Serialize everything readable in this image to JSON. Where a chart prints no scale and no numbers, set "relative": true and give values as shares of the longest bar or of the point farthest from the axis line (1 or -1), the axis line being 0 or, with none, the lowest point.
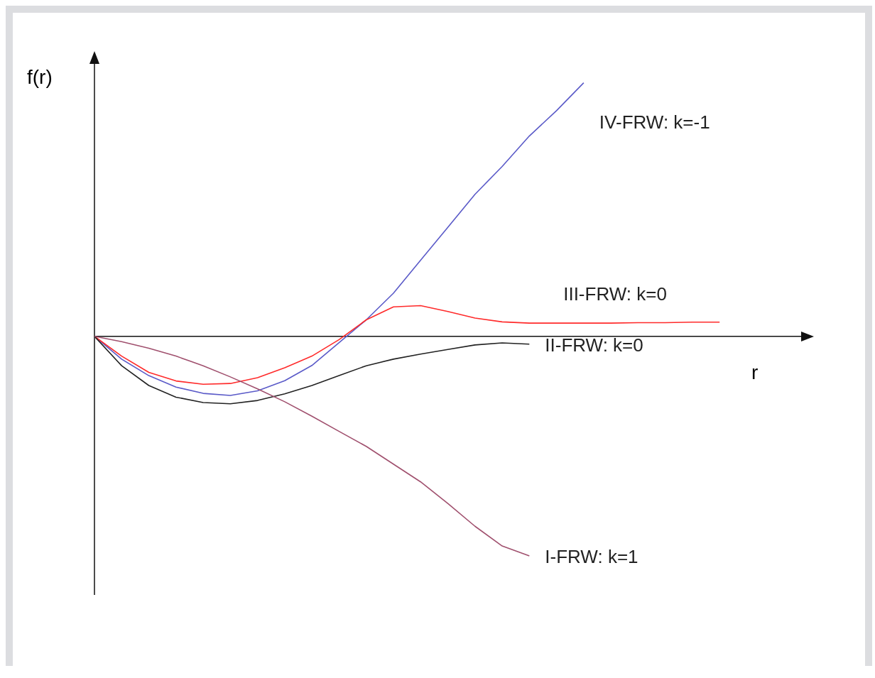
{
  "chart_data": {
    "type": "line",
    "relative": true,
    "xlabel": "r",
    "ylabel": "f(r)",
    "marker": "none",
    "line_style": "solid",
    "grid": false,
    "legend": false,
    "categories": [
      null,
      null,
      null,
      null,
      null,
      null,
      null,
      null,
      null,
      null,
      null,
      null,
      null,
      null,
      null,
      null,
      null,
      null,
      null,
      null,
      null,
      null,
      null,
      null,
      null,
      null
    ],
    "series": [
      {
        "name": "IV-FRW: k=-1",
        "color": "#5a5ac8",
        "values": [
          0,
          -0.09,
          -0.155,
          -0.2,
          -0.225,
          -0.233,
          -0.215,
          -0.175,
          -0.115,
          -0.025,
          0.065,
          0.17,
          0.3,
          0.43,
          0.56,
          0.67,
          0.79,
          0.89,
          1,
          null,
          null,
          null,
          null,
          null,
          null,
          null
        ]
      },
      {
        "name": "III-FRW: k=0",
        "color": "#ff2a2a",
        "values": [
          0,
          -0.078,
          -0.142,
          -0.176,
          -0.189,
          -0.186,
          -0.163,
          -0.124,
          -0.078,
          -0.013,
          0.065,
          0.116,
          0.121,
          0.098,
          0.072,
          0.057,
          0.052,
          0.052,
          0.052,
          0.052,
          0.054,
          0.054,
          0.056,
          0.056,
          null,
          null
        ]
      },
      {
        "name": "II-FRW: k=0",
        "color": "#222222",
        "values": [
          0,
          -0.116,
          -0.194,
          -0.24,
          -0.261,
          -0.266,
          -0.253,
          -0.227,
          -0.194,
          -0.155,
          -0.116,
          -0.09,
          -0.07,
          -0.052,
          -0.034,
          -0.026,
          -0.031,
          null,
          null,
          null,
          null,
          null,
          null,
          null,
          null,
          null
        ]
      },
      {
        "name": "I-FRW: k=1",
        "color": "#a0506e",
        "values": [
          0,
          -0.021,
          -0.047,
          -0.078,
          -0.116,
          -0.16,
          -0.207,
          -0.258,
          -0.315,
          -0.375,
          -0.434,
          -0.504,
          -0.574,
          -0.659,
          -0.749,
          -0.827,
          -0.866,
          null,
          null,
          null,
          null,
          null,
          null,
          null,
          null,
          null
        ]
      }
    ]
  }
}
